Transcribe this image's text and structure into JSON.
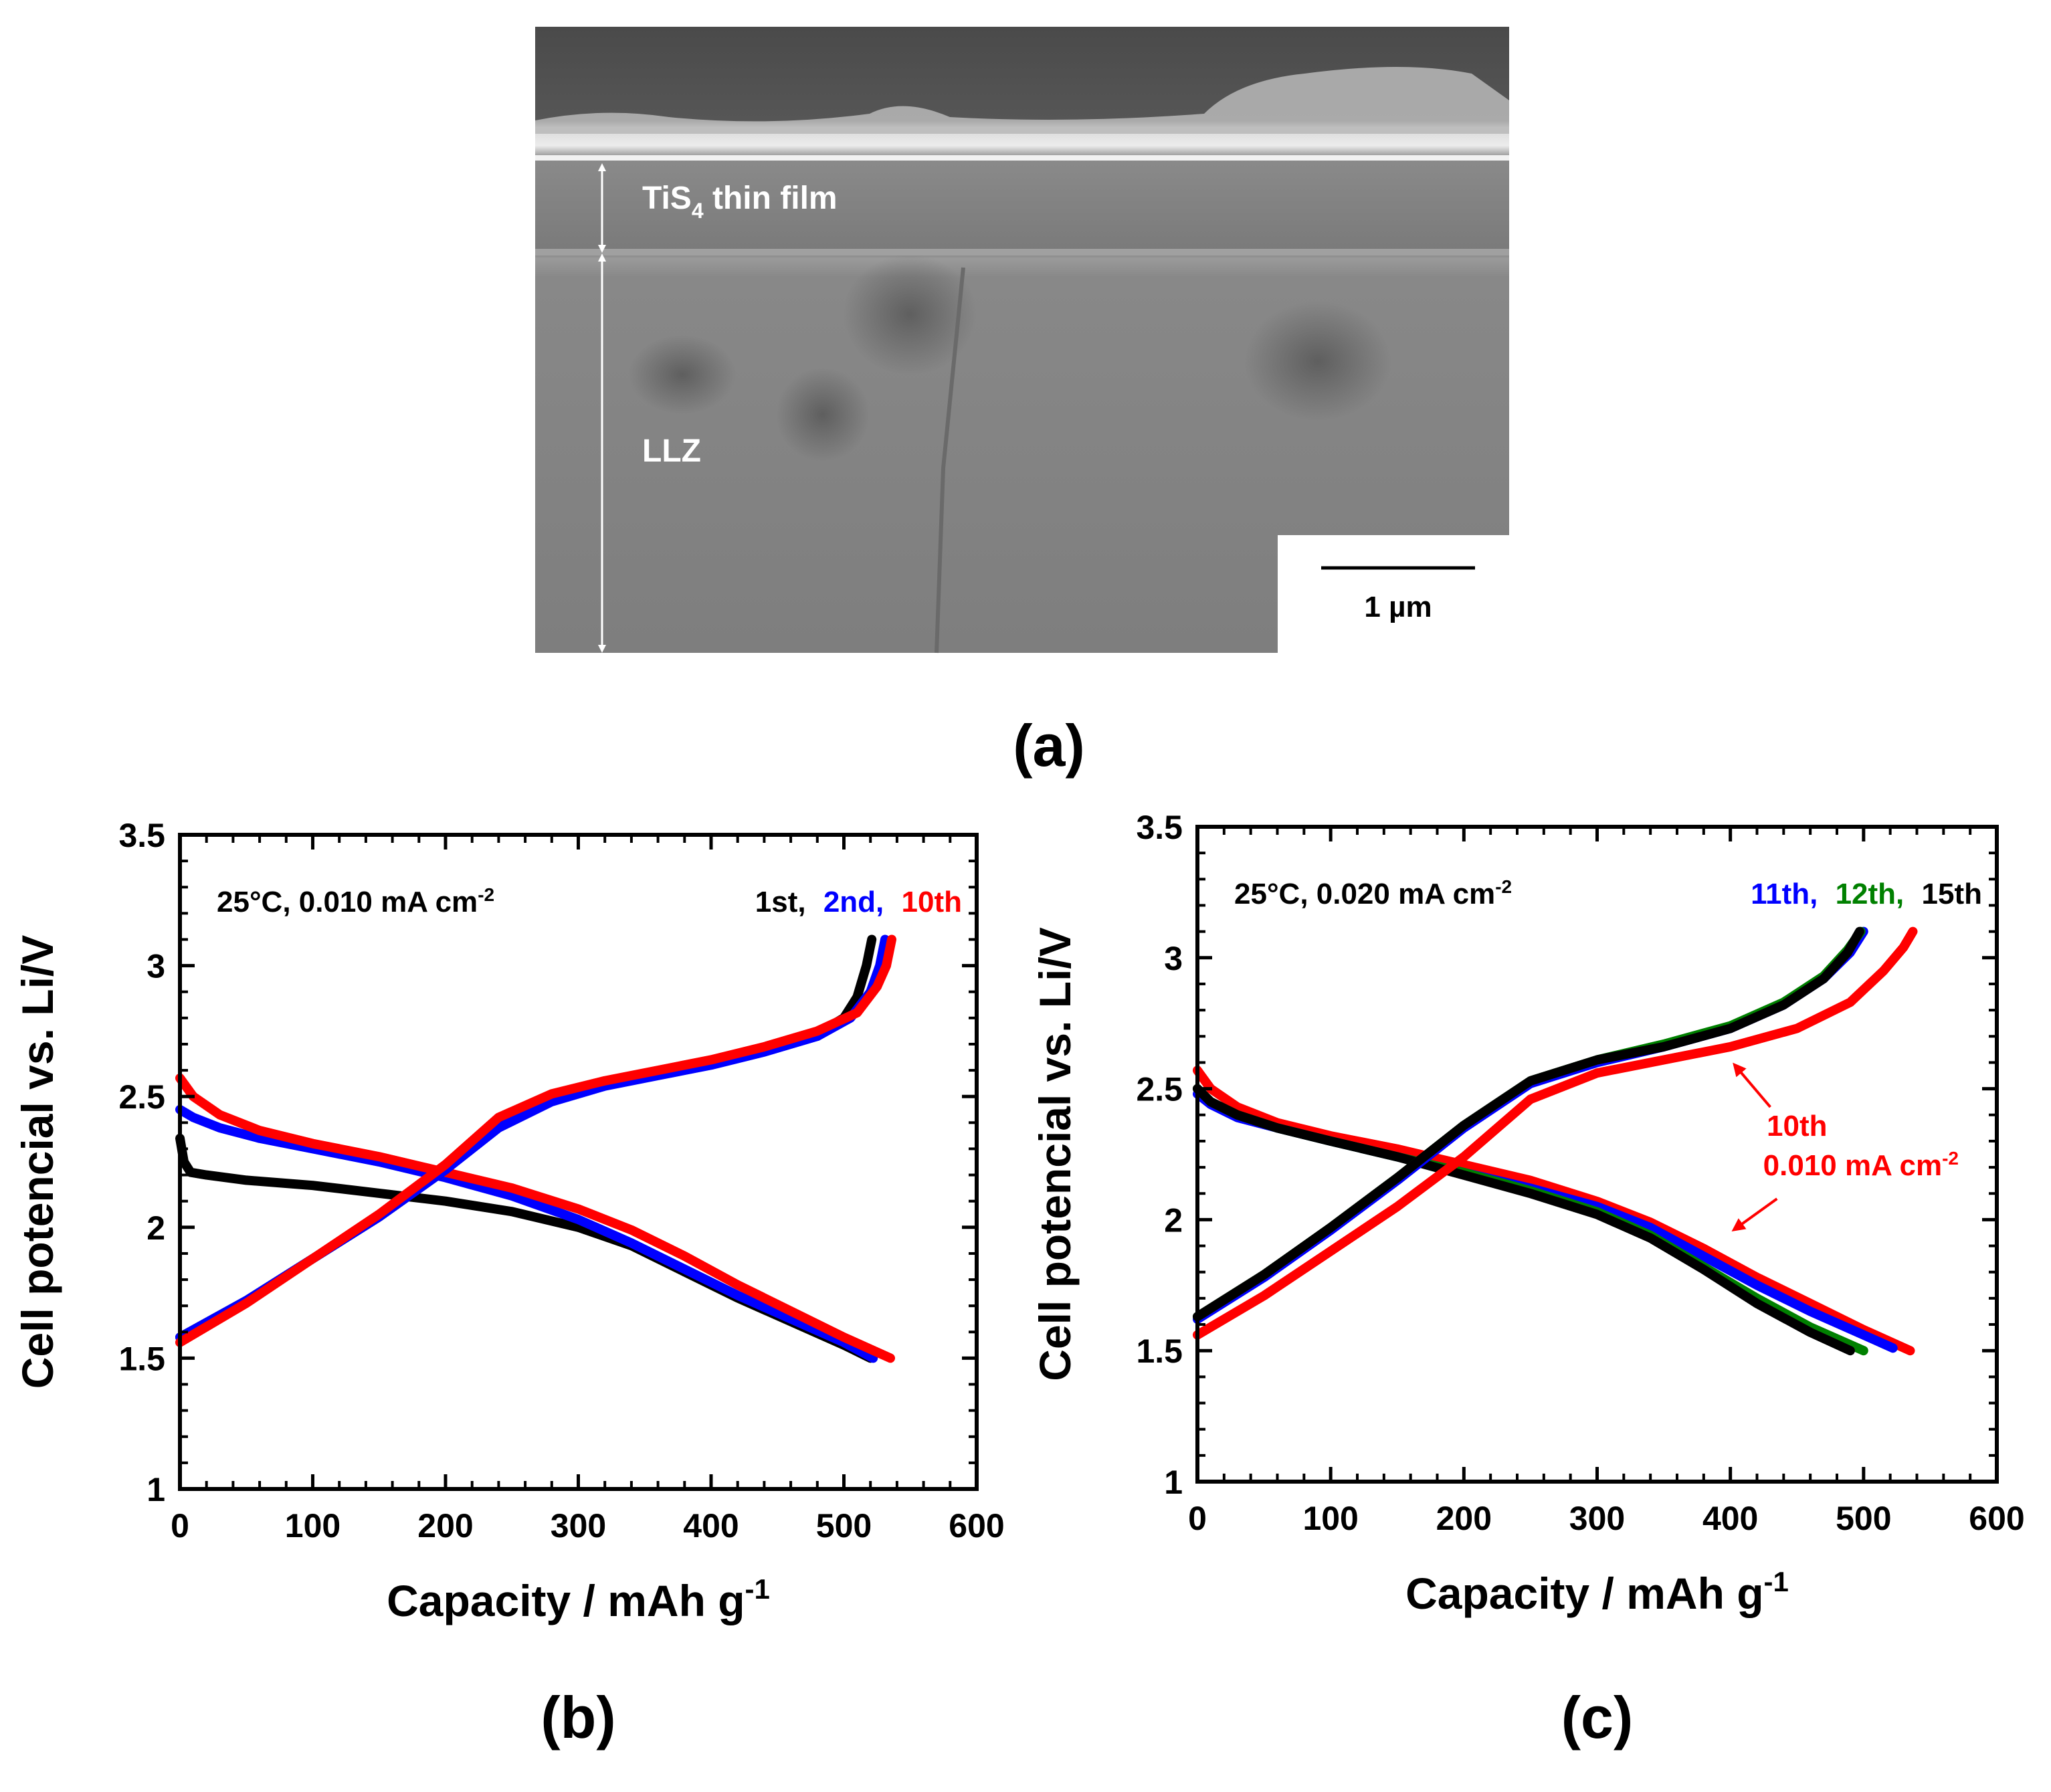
{
  "panel_a": {
    "film_label": "TiS",
    "film_subscript": "4",
    "film_suffix": " thin film",
    "substrate_label": "LLZ",
    "scale_bar_label": "1 µm",
    "caption": "(a)"
  },
  "colors": {
    "first": "#000000",
    "second": "#0000ff",
    "tenth": "#ff0000",
    "eleventh": "#0000ff",
    "twelfth": "#008000",
    "fifteenth": "#000000"
  },
  "chart_data": [
    {
      "type": "line",
      "panel": "b",
      "caption": "(b)",
      "xlabel": "Capacity / mAh  g",
      "xlabel_sup": "-1",
      "ylabel": "Cell potencial vs. Li/V",
      "xlim": [
        0,
        600
      ],
      "ylim": [
        1,
        3.5
      ],
      "xticks": [
        "0",
        "100",
        "200",
        "300",
        "400",
        "500",
        "600"
      ],
      "yticks": [
        "1",
        "1.5",
        "2",
        "2.5",
        "3",
        "3.5"
      ],
      "condition": "25°C, 0.010 mA cm",
      "condition_sup": "-2",
      "legend": [
        {
          "text": "1st,",
          "color": "#000000"
        },
        {
          "text": "2nd,",
          "color": "#0000ff"
        },
        {
          "text": "10th",
          "color": "#ff0000"
        }
      ],
      "series": [
        {
          "name": "1st discharge",
          "color": "#000000",
          "x": [
            0,
            3,
            8,
            20,
            50,
            100,
            150,
            200,
            250,
            300,
            340,
            380,
            420,
            460,
            500,
            520
          ],
          "y": [
            2.34,
            2.25,
            2.21,
            2.2,
            2.18,
            2.16,
            2.13,
            2.1,
            2.06,
            2.0,
            1.93,
            1.83,
            1.73,
            1.64,
            1.55,
            1.5
          ]
        },
        {
          "name": "2nd discharge",
          "color": "#0000ff",
          "x": [
            0,
            10,
            30,
            60,
            100,
            150,
            200,
            250,
            300,
            340,
            380,
            420,
            460,
            500,
            522
          ],
          "y": [
            2.45,
            2.42,
            2.38,
            2.34,
            2.3,
            2.25,
            2.19,
            2.12,
            2.03,
            1.94,
            1.84,
            1.74,
            1.65,
            1.56,
            1.5
          ]
        },
        {
          "name": "10th discharge",
          "color": "#ff0000",
          "x": [
            0,
            10,
            30,
            60,
            100,
            150,
            200,
            250,
            300,
            340,
            380,
            420,
            460,
            500,
            535
          ],
          "y": [
            2.57,
            2.5,
            2.43,
            2.37,
            2.32,
            2.27,
            2.21,
            2.15,
            2.07,
            1.99,
            1.89,
            1.78,
            1.68,
            1.58,
            1.5
          ]
        },
        {
          "name": "1st charge",
          "color": "#000000",
          "x": [
            0,
            50,
            100,
            150,
            200,
            240,
            280,
            320,
            360,
            400,
            440,
            480,
            500,
            510,
            517,
            521
          ],
          "y": [
            1.58,
            1.72,
            1.88,
            2.04,
            2.22,
            2.4,
            2.5,
            2.55,
            2.59,
            2.63,
            2.68,
            2.74,
            2.8,
            2.88,
            3.0,
            3.1
          ]
        },
        {
          "name": "2nd charge",
          "color": "#0000ff",
          "x": [
            0,
            50,
            100,
            150,
            200,
            240,
            280,
            320,
            360,
            400,
            440,
            480,
            505,
            520,
            527,
            531
          ],
          "y": [
            1.58,
            1.72,
            1.88,
            2.04,
            2.22,
            2.38,
            2.48,
            2.54,
            2.58,
            2.62,
            2.67,
            2.73,
            2.8,
            2.9,
            3.0,
            3.1
          ]
        },
        {
          "name": "10th charge",
          "color": "#ff0000",
          "x": [
            0,
            50,
            100,
            150,
            200,
            240,
            280,
            320,
            360,
            400,
            440,
            480,
            510,
            525,
            532,
            536
          ],
          "y": [
            1.56,
            1.71,
            1.88,
            2.05,
            2.24,
            2.42,
            2.51,
            2.56,
            2.6,
            2.64,
            2.69,
            2.75,
            2.82,
            2.92,
            3.0,
            3.1
          ]
        }
      ]
    },
    {
      "type": "line",
      "panel": "c",
      "caption": "(c)",
      "xlabel": "Capacity / mAh  g",
      "xlabel_sup": "-1",
      "ylabel": "Cell potencial vs. Li/V",
      "xlim": [
        0,
        600
      ],
      "ylim": [
        1,
        3.5
      ],
      "xticks": [
        "0",
        "100",
        "200",
        "300",
        "400",
        "500",
        "600"
      ],
      "yticks": [
        "1",
        "1.5",
        "2",
        "2.5",
        "3",
        "3.5"
      ],
      "condition": "25°C, 0.020 mA cm",
      "condition_sup": "-2",
      "legend": [
        {
          "text": "11th,",
          "color": "#0000ff"
        },
        {
          "text": "12th,",
          "color": "#008000"
        },
        {
          "text": "15th",
          "color": "#000000"
        }
      ],
      "annotation": {
        "line1": "10th",
        "line2": "0.010 mA cm",
        "sup": "-2",
        "color": "#ff0000"
      },
      "series": [
        {
          "name": "10th discharge",
          "color": "#ff0000",
          "x": [
            0,
            10,
            30,
            60,
            100,
            150,
            200,
            250,
            300,
            340,
            380,
            420,
            460,
            500,
            535
          ],
          "y": [
            2.57,
            2.5,
            2.43,
            2.37,
            2.32,
            2.27,
            2.21,
            2.15,
            2.07,
            1.99,
            1.89,
            1.78,
            1.68,
            1.58,
            1.5
          ]
        },
        {
          "name": "11th discharge",
          "color": "#0000ff",
          "x": [
            0,
            10,
            30,
            60,
            100,
            150,
            200,
            250,
            300,
            340,
            380,
            420,
            460,
            500,
            522
          ],
          "y": [
            2.48,
            2.44,
            2.39,
            2.35,
            2.3,
            2.24,
            2.18,
            2.12,
            2.05,
            1.97,
            1.86,
            1.75,
            1.65,
            1.56,
            1.51
          ]
        },
        {
          "name": "12th discharge",
          "color": "#008000",
          "x": [
            0,
            10,
            30,
            60,
            100,
            150,
            200,
            250,
            300,
            340,
            380,
            420,
            460,
            500
          ],
          "y": [
            2.5,
            2.45,
            2.4,
            2.35,
            2.3,
            2.24,
            2.18,
            2.11,
            2.03,
            1.94,
            1.82,
            1.7,
            1.59,
            1.5
          ]
        },
        {
          "name": "15th discharge",
          "color": "#000000",
          "x": [
            0,
            10,
            30,
            60,
            100,
            150,
            200,
            250,
            300,
            340,
            380,
            420,
            460,
            490
          ],
          "y": [
            2.5,
            2.45,
            2.4,
            2.35,
            2.3,
            2.24,
            2.17,
            2.1,
            2.02,
            1.93,
            1.81,
            1.68,
            1.57,
            1.5
          ]
        },
        {
          "name": "10th charge",
          "color": "#ff0000",
          "x": [
            0,
            50,
            100,
            150,
            200,
            250,
            300,
            350,
            400,
            450,
            490,
            515,
            530,
            537
          ],
          "y": [
            1.56,
            1.71,
            1.88,
            2.05,
            2.24,
            2.46,
            2.56,
            2.61,
            2.66,
            2.73,
            2.83,
            2.95,
            3.04,
            3.1
          ]
        },
        {
          "name": "11th charge",
          "color": "#0000ff",
          "x": [
            0,
            50,
            100,
            150,
            200,
            250,
            300,
            350,
            400,
            440,
            470,
            490,
            500
          ],
          "y": [
            1.62,
            1.78,
            1.96,
            2.15,
            2.35,
            2.52,
            2.6,
            2.66,
            2.73,
            2.82,
            2.92,
            3.02,
            3.1
          ]
        },
        {
          "name": "12th charge",
          "color": "#008000",
          "x": [
            0,
            50,
            100,
            150,
            200,
            250,
            300,
            350,
            400,
            440,
            470,
            488,
            498
          ],
          "y": [
            1.63,
            1.79,
            1.97,
            2.16,
            2.36,
            2.53,
            2.61,
            2.67,
            2.74,
            2.83,
            2.93,
            3.03,
            3.1
          ]
        },
        {
          "name": "15th charge",
          "color": "#000000",
          "x": [
            0,
            50,
            100,
            150,
            200,
            250,
            300,
            350,
            400,
            440,
            470,
            488,
            497
          ],
          "y": [
            1.63,
            1.79,
            1.97,
            2.16,
            2.36,
            2.53,
            2.61,
            2.66,
            2.73,
            2.82,
            2.92,
            3.02,
            3.1
          ]
        }
      ]
    }
  ]
}
